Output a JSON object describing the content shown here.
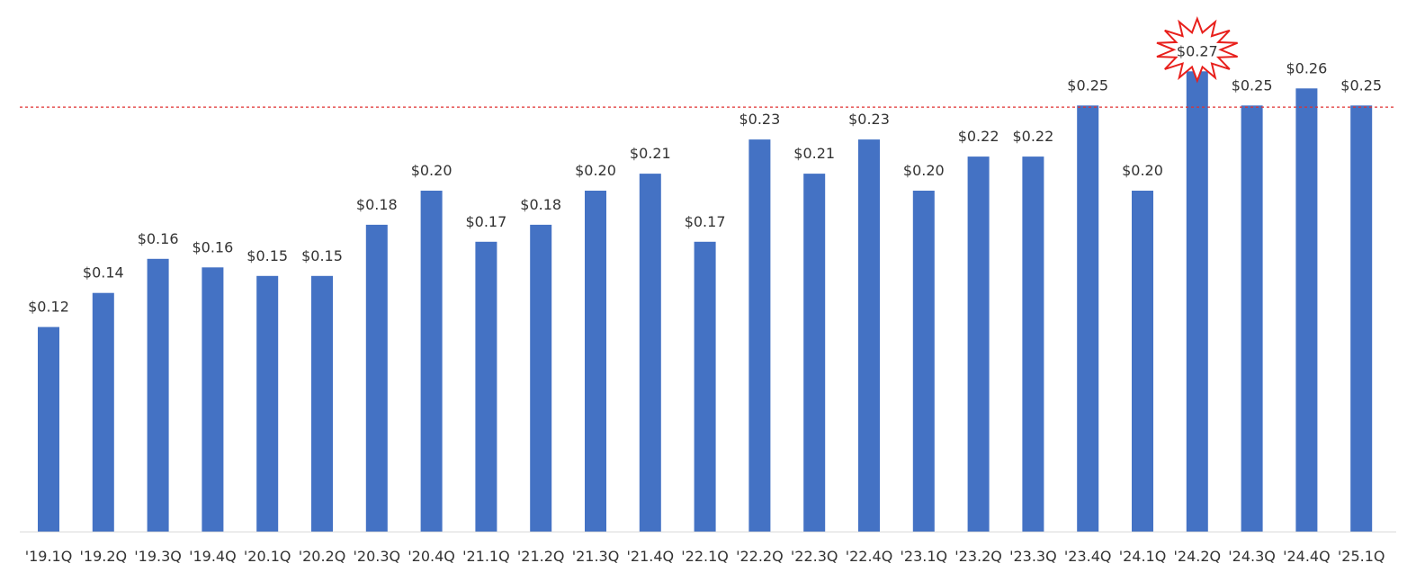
{
  "chart_data": {
    "type": "bar",
    "categories": [
      "'19.1Q",
      "'19.2Q",
      "'19.3Q",
      "'19.4Q",
      "'20.1Q",
      "'20.2Q",
      "'20.3Q",
      "'20.4Q",
      "'21.1Q",
      "'21.2Q",
      "'21.3Q",
      "'21.4Q",
      "'22.1Q",
      "'22.2Q",
      "'22.3Q",
      "'22.4Q",
      "'23.1Q",
      "'23.2Q",
      "'23.3Q",
      "'23.4Q",
      "'24.1Q",
      "'24.2Q",
      "'24.3Q",
      "'24.4Q",
      "'25.1Q"
    ],
    "values": [
      0.12,
      0.14,
      0.16,
      0.155,
      0.15,
      0.15,
      0.18,
      0.2,
      0.17,
      0.18,
      0.2,
      0.21,
      0.17,
      0.23,
      0.21,
      0.23,
      0.2,
      0.22,
      0.22,
      0.25,
      0.2,
      0.27,
      0.25,
      0.26,
      0.25
    ],
    "labels": [
      "$0.12",
      "$0.14",
      "$0.16",
      "$0.16",
      "$0.15",
      "$0.15",
      "$0.18",
      "$0.20",
      "$0.17",
      "$0.18",
      "$0.20",
      "$0.21",
      "$0.17",
      "$0.23",
      "$0.21",
      "$0.23",
      "$0.20",
      "$0.22",
      "$0.22",
      "$0.25",
      "$0.20",
      "$0.27",
      "$0.25",
      "$0.26",
      "$0.25"
    ],
    "title": "",
    "xlabel": "",
    "ylabel": "",
    "ylim": [
      0,
      0.28
    ],
    "grid": false,
    "reference_line": 0.249,
    "highlight_index": 21,
    "colors": {
      "bar": "#4472C4",
      "reference_line": "#E03030",
      "highlight_stroke": "#E8201C",
      "highlight_fill": "#FFFFFF",
      "axis": "#D9D9D9"
    }
  }
}
